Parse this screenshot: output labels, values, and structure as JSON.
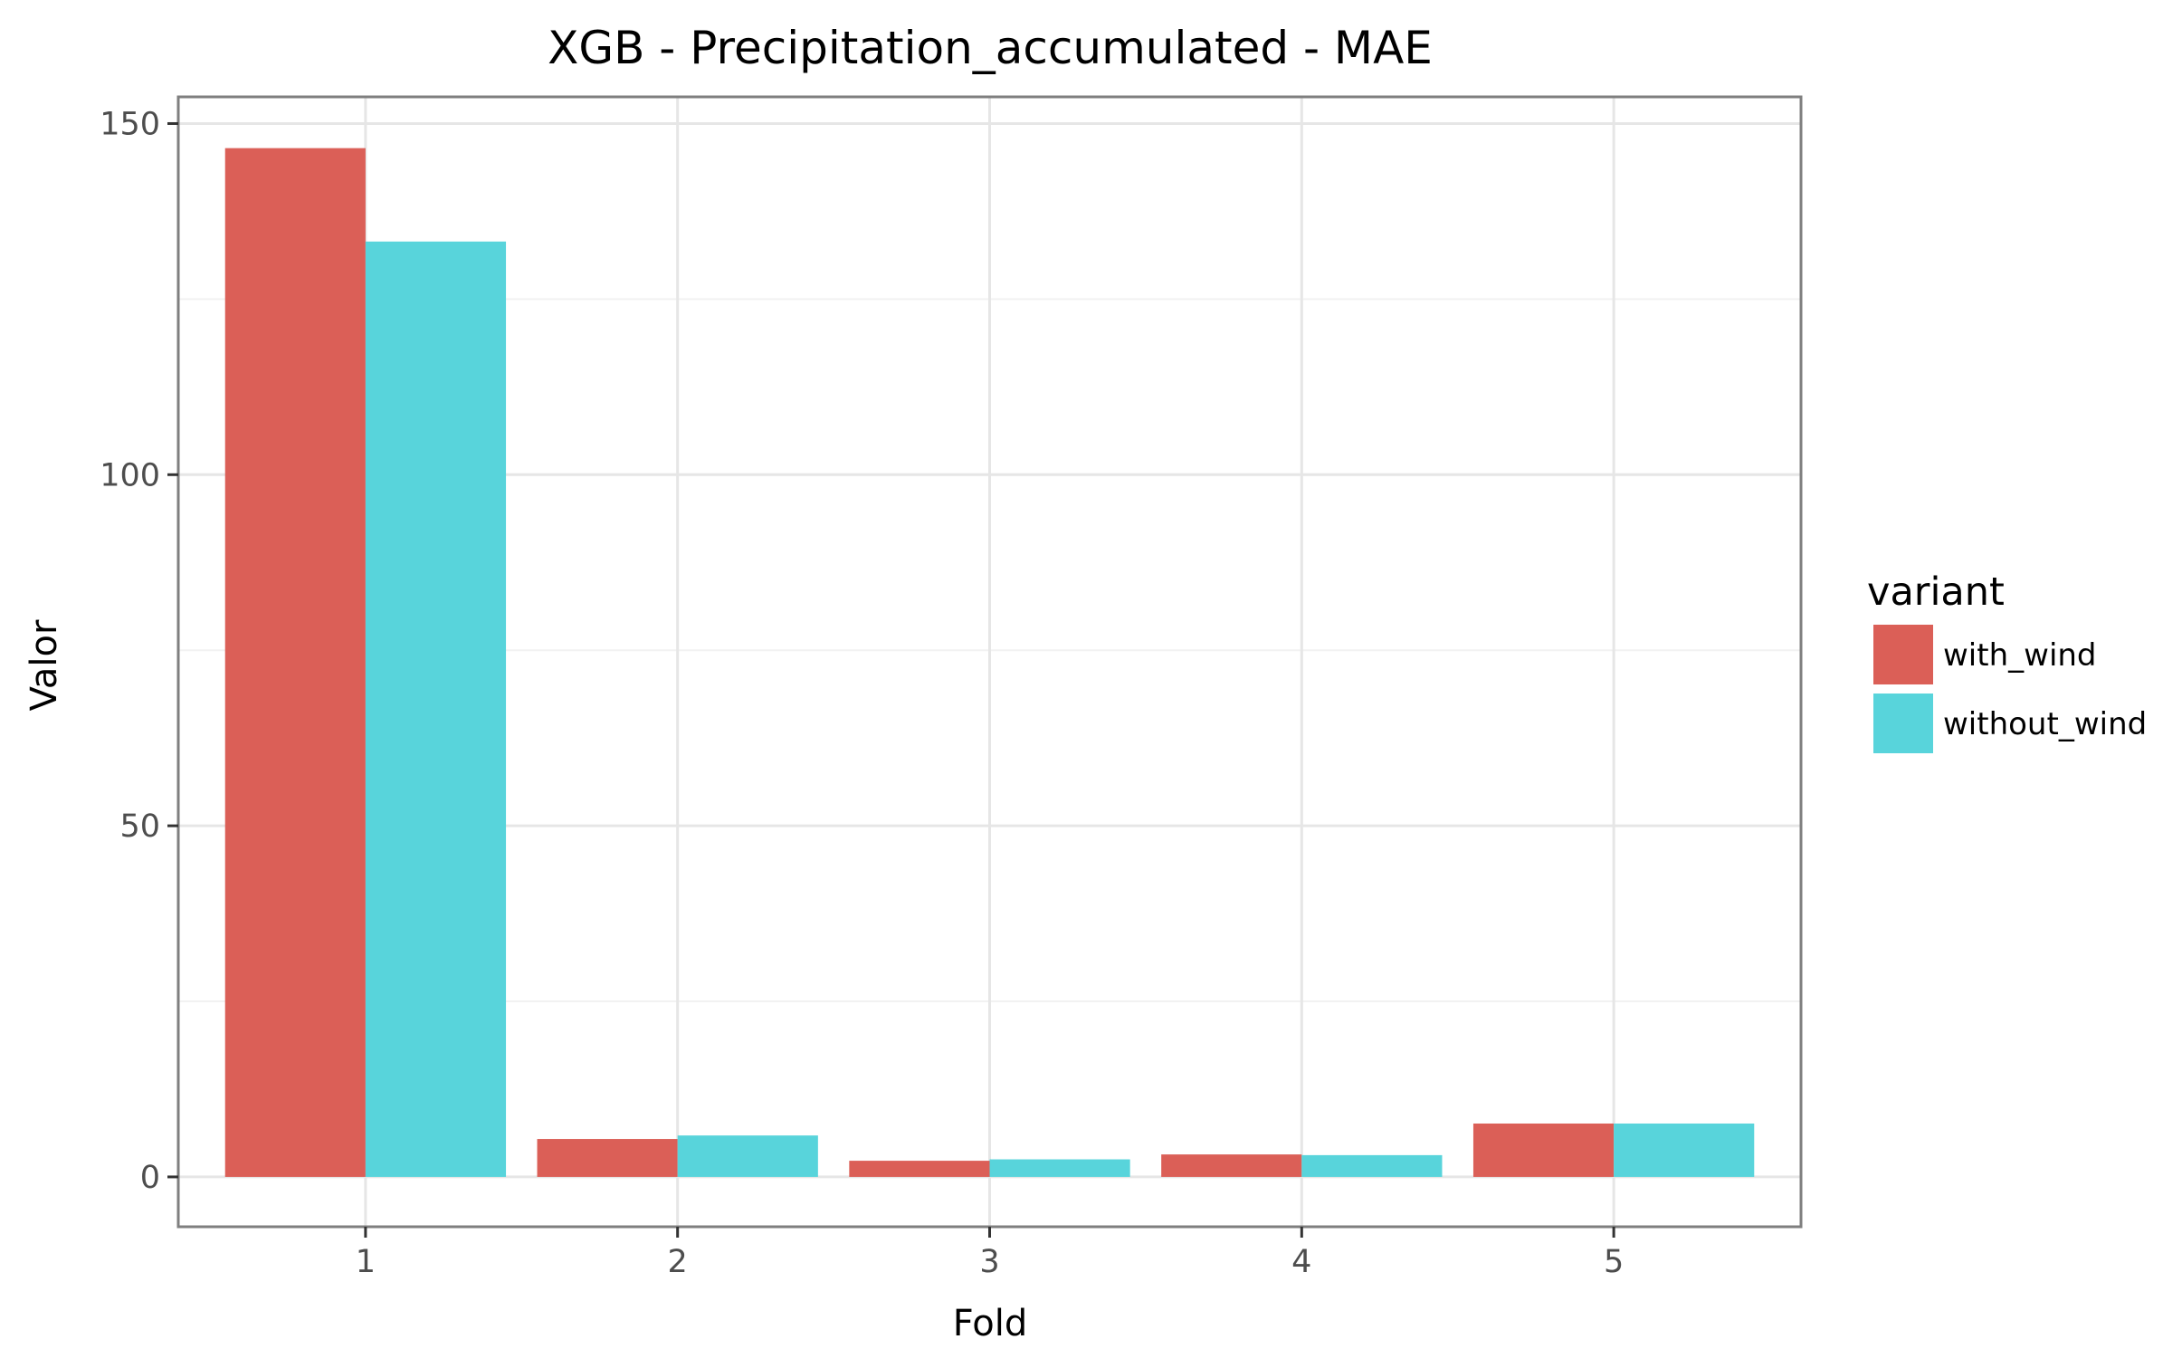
{
  "chart_data": {
    "type": "bar",
    "title": "XGB - Precipitation_accumulated - MAE",
    "xlabel": "Fold",
    "ylabel": "Valor",
    "categories": [
      "1",
      "2",
      "3",
      "4",
      "5"
    ],
    "series": [
      {
        "name": "with_wind",
        "color": "#db5f57",
        "values": [
          146.5,
          5.4,
          2.3,
          3.2,
          7.6
        ]
      },
      {
        "name": "without_wind",
        "color": "#58d4db",
        "values": [
          133.2,
          5.9,
          2.5,
          3.1,
          7.6
        ]
      }
    ],
    "ylim": [
      -7.1,
      153.8
    ],
    "yticks": [
      0,
      50,
      100,
      150
    ],
    "grid": true,
    "legend": {
      "title": "variant",
      "position": "right"
    }
  }
}
